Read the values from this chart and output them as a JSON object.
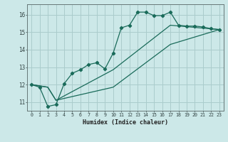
{
  "xlabel": "Humidex (Indice chaleur)",
  "background_color": "#cce8e8",
  "grid_color": "#aacccc",
  "line_color": "#1a6b5a",
  "xlim": [
    -0.5,
    23.5
  ],
  "ylim": [
    10.5,
    16.6
  ],
  "xticks": [
    0,
    1,
    2,
    3,
    4,
    5,
    6,
    7,
    8,
    9,
    10,
    11,
    12,
    13,
    14,
    15,
    16,
    17,
    18,
    19,
    20,
    21,
    22,
    23
  ],
  "yticks": [
    11,
    12,
    13,
    14,
    15,
    16
  ],
  "curve1_x": [
    0,
    1,
    2,
    3,
    4,
    5,
    6,
    7,
    8,
    9,
    10,
    11,
    12,
    13,
    14,
    15,
    16,
    17,
    18,
    19,
    20,
    21,
    22,
    23
  ],
  "curve1_y": [
    12.0,
    11.85,
    10.75,
    10.85,
    12.05,
    12.65,
    12.85,
    13.15,
    13.25,
    12.9,
    13.8,
    15.25,
    15.4,
    16.15,
    16.15,
    15.95,
    15.95,
    16.15,
    15.4,
    15.35,
    15.35,
    15.3,
    15.2,
    15.15
  ],
  "curve2_x": [
    0,
    2,
    3,
    10,
    17,
    23
  ],
  "curve2_y": [
    12.0,
    11.85,
    11.1,
    12.85,
    15.4,
    15.15
  ],
  "curve3_x": [
    0,
    2,
    3,
    10,
    17,
    23
  ],
  "curve3_y": [
    12.0,
    11.85,
    11.1,
    11.85,
    14.3,
    15.15
  ]
}
